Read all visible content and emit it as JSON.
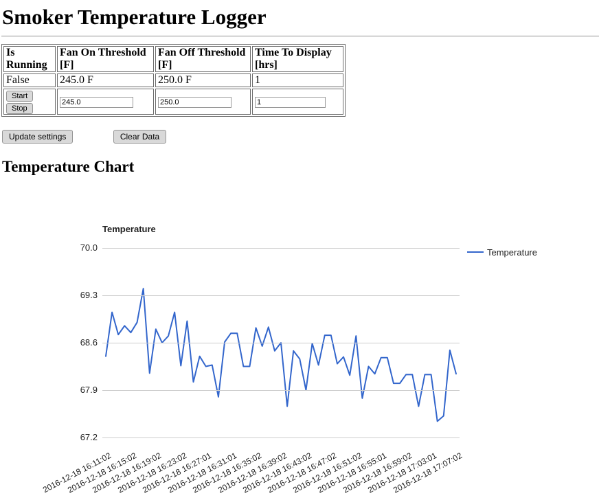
{
  "page": {
    "title": "Smoker Temperature Logger",
    "chart_heading": "Temperature Chart"
  },
  "settings_table": {
    "headers": [
      "Is Running",
      "Fan On Threshold [F]",
      "Fan Off Threshold [F]",
      "Time To Display [hrs]"
    ],
    "values": [
      "False",
      "245.0 F",
      "250.0 F",
      "1"
    ],
    "buttons": {
      "start": "Start",
      "stop": "Stop"
    },
    "inputs": {
      "fan_on": "245.0",
      "fan_off": "250.0",
      "time_to_display": "1"
    }
  },
  "actions": {
    "update": "Update settings",
    "clear": "Clear Data"
  },
  "chart_data": {
    "type": "line",
    "title": "Temperature",
    "legend": {
      "position": "right",
      "entries": [
        "Temperature"
      ]
    },
    "x_start": "2016-12-18 16:11:02",
    "x_interval_seconds": 60,
    "x_tick_labels": [
      "2016-12-18 16:11:02",
      "2016-12-18 16:15:02",
      "2016-12-18 16:19:02",
      "2016-12-18 16:23:02",
      "2016-12-18 16:27:01",
      "2016-12-18 16:31:01",
      "2016-12-18 16:35:02",
      "2016-12-18 16:39:02",
      "2016-12-18 16:43:02",
      "2016-12-18 16:47:02",
      "2016-12-18 16:51:02",
      "2016-12-18 16:55:01",
      "2016-12-18 16:59:02",
      "2016-12-18 17:03:01",
      "2016-12-18 17:07:02"
    ],
    "y_ticks": [
      70.0,
      69.3,
      68.6,
      67.9,
      67.2
    ],
    "ylim": [
      67.2,
      70.0
    ],
    "grid": true,
    "gridline_color": "#cccccc",
    "text_color": "#222222",
    "series": [
      {
        "name": "Temperature",
        "color": "#3366cc",
        "values": [
          68.4,
          69.05,
          68.72,
          68.85,
          68.75,
          68.9,
          69.4,
          68.15,
          68.8,
          68.6,
          68.7,
          69.05,
          68.26,
          68.92,
          68.02,
          68.4,
          68.25,
          68.27,
          67.8,
          68.61,
          68.74,
          68.74,
          68.25,
          68.25,
          68.82,
          68.55,
          68.83,
          68.48,
          68.6,
          67.66,
          68.48,
          68.36,
          67.9,
          68.59,
          68.27,
          68.71,
          68.71,
          68.29,
          68.39,
          68.12,
          68.7,
          67.78,
          68.25,
          68.14,
          68.38,
          68.38,
          68.0,
          68.0,
          68.13,
          68.13,
          67.66,
          68.13,
          68.13,
          67.44,
          67.52,
          68.49,
          68.14
        ]
      }
    ]
  }
}
